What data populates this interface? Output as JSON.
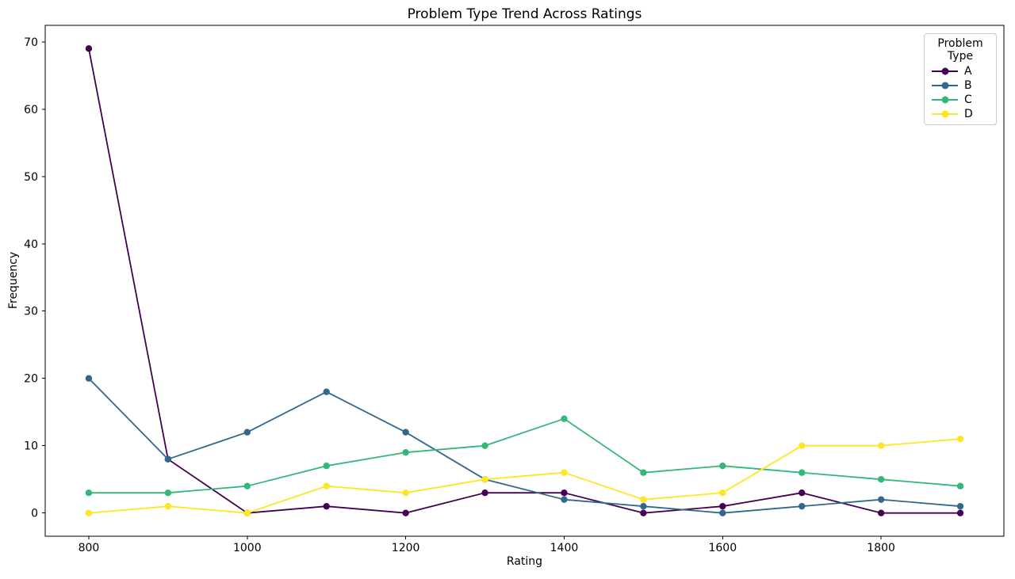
{
  "chart_data": {
    "type": "line",
    "title": "Problem Type Trend Across Ratings",
    "xlabel": "Rating",
    "ylabel": "Frequency",
    "x": [
      800,
      900,
      1000,
      1100,
      1200,
      1300,
      1400,
      1500,
      1600,
      1700,
      1800,
      1900
    ],
    "series": [
      {
        "name": "A",
        "color": "#440154",
        "values": [
          69,
          8,
          0,
          1,
          0,
          3,
          3,
          0,
          1,
          3,
          0,
          0
        ]
      },
      {
        "name": "B",
        "color": "#31688e",
        "values": [
          20,
          8,
          12,
          18,
          12,
          5,
          2,
          1,
          0,
          1,
          2,
          1
        ]
      },
      {
        "name": "C",
        "color": "#35b779",
        "values": [
          3,
          3,
          4,
          7,
          9,
          10,
          14,
          6,
          7,
          6,
          5,
          4
        ]
      },
      {
        "name": "D",
        "color": "#fde725",
        "values": [
          0,
          1,
          0,
          4,
          3,
          5,
          6,
          2,
          3,
          10,
          10,
          11
        ]
      }
    ],
    "xlim": [
      745,
      1955
    ],
    "ylim": [
      -3.45,
      72.45
    ],
    "xticks": [
      800,
      1000,
      1200,
      1400,
      1600,
      1800
    ],
    "yticks": [
      0,
      10,
      20,
      30,
      40,
      50,
      60,
      70
    ],
    "grid": false,
    "legend": {
      "title": "Problem Type",
      "position": "top-right"
    },
    "axis_color": "#000000",
    "frame_color": "#cccccc"
  }
}
